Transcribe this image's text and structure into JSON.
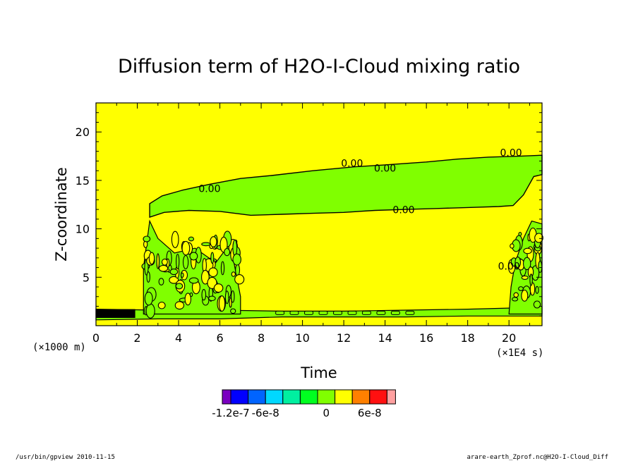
{
  "chart_data": {
    "type": "heatmap",
    "title": "Diffusion term of H2O-I-Cloud mixing ratio",
    "xlabel": "Time",
    "ylabel": "Z-coordinate",
    "x_unit": "(×1E4 s)",
    "y_unit": "(×1000 m)",
    "xlim": [
      0,
      21.6
    ],
    "ylim": [
      0,
      23
    ],
    "x_ticks": [
      0,
      2,
      4,
      6,
      8,
      10,
      12,
      14,
      16,
      18,
      20
    ],
    "y_ticks": [
      5,
      10,
      15,
      20
    ],
    "contour_labels": [
      "0.00",
      "0.00",
      "0.00",
      "0.00",
      "0.00",
      "0.00"
    ],
    "colorbar": {
      "levels": [
        "-1.2e-7",
        "-6e-8",
        "0",
        "6e-8"
      ],
      "colors": [
        "#7a00c0",
        "#0000ff",
        "#0064ff",
        "#00d8ff",
        "#00f0a0",
        "#00ff20",
        "#80ff00",
        "#ffff00",
        "#ff8000",
        "#ff1010",
        "#ffa0a0"
      ]
    },
    "background_color": "#ffff00",
    "positive_region_color": "#80ff00"
  },
  "footer": {
    "left": "/usr/bin/gpview  2010-11-15",
    "right": "arare-earth_Zprof.nc@H2O-I-Cloud_Diff"
  }
}
